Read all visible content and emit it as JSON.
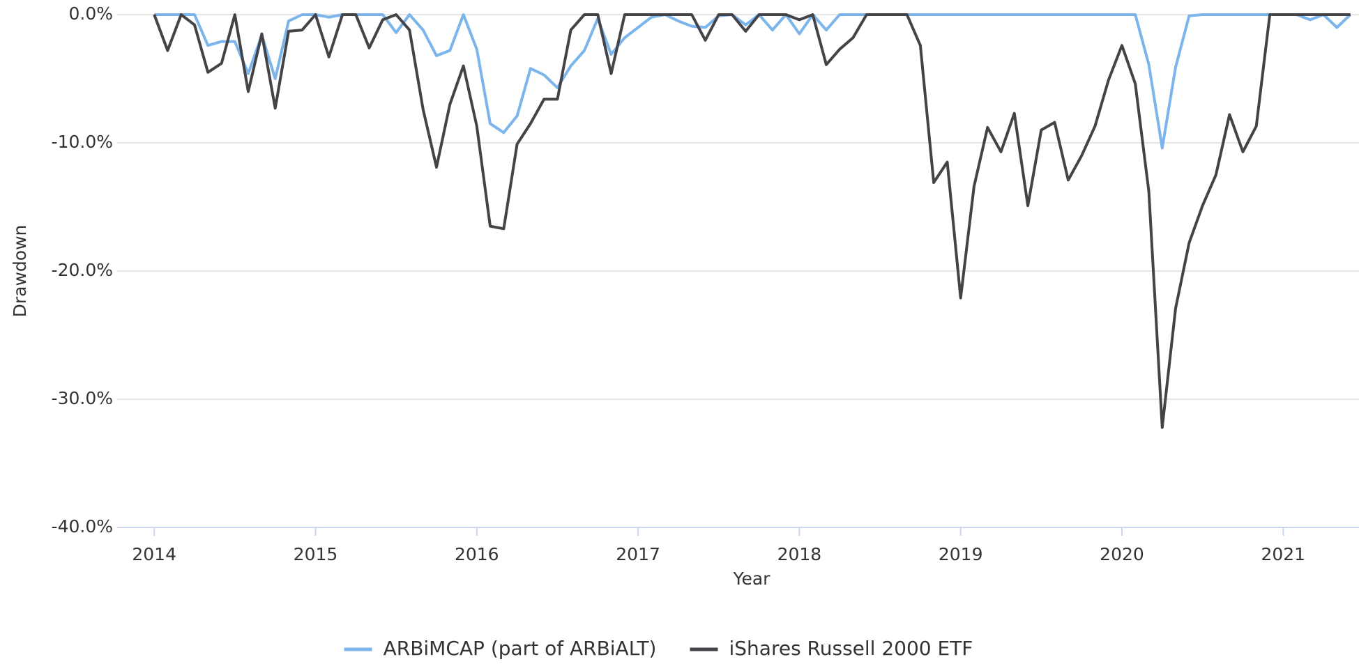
{
  "chart_data": {
    "type": "line",
    "x_label": "Year",
    "y_label": "Drawdown",
    "x": [
      2014,
      2014.083,
      2014.167,
      2014.25,
      2014.333,
      2014.417,
      2014.5,
      2014.583,
      2014.667,
      2014.75,
      2014.833,
      2014.917,
      2015,
      2015.083,
      2015.167,
      2015.25,
      2015.333,
      2015.417,
      2015.5,
      2015.583,
      2015.667,
      2015.75,
      2015.833,
      2015.917,
      2016,
      2016.083,
      2016.167,
      2016.25,
      2016.333,
      2016.417,
      2016.5,
      2016.583,
      2016.667,
      2016.75,
      2016.833,
      2016.917,
      2017,
      2017.083,
      2017.167,
      2017.25,
      2017.333,
      2017.417,
      2017.5,
      2017.583,
      2017.667,
      2017.75,
      2017.833,
      2017.917,
      2018,
      2018.083,
      2018.167,
      2018.25,
      2018.333,
      2018.417,
      2018.5,
      2018.583,
      2018.667,
      2018.75,
      2018.833,
      2018.917,
      2019,
      2019.083,
      2019.167,
      2019.25,
      2019.333,
      2019.417,
      2019.5,
      2019.583,
      2019.667,
      2019.75,
      2019.833,
      2019.917,
      2020,
      2020.083,
      2020.167,
      2020.25,
      2020.333,
      2020.417,
      2020.5,
      2020.583,
      2020.667,
      2020.75,
      2020.833,
      2020.917,
      2021,
      2021.083,
      2021.167,
      2021.25,
      2021.333,
      2021.417
    ],
    "series": [
      {
        "name": "ARBiMCAP (part of ARBiALT)",
        "color": "#7cb5ec",
        "values": [
          0,
          0,
          0,
          0,
          -2.4,
          -2.1,
          -2.1,
          -4.6,
          -1.6,
          -5.0,
          -0.5,
          0,
          0,
          -0.2,
          0,
          0,
          0,
          0,
          -1.4,
          0,
          -1.2,
          -3.2,
          -2.8,
          0,
          -2.7,
          -8.5,
          -9.2,
          -7.9,
          -4.2,
          -4.7,
          -5.7,
          -4.0,
          -2.8,
          -0.3,
          -3.1,
          -1.8,
          -1.0,
          -0.2,
          0,
          -0.5,
          -0.9,
          -1.0,
          -0.1,
          0,
          -0.8,
          0,
          -1.2,
          0,
          -1.5,
          0,
          -1.2,
          0,
          0,
          0,
          0,
          0,
          0,
          0,
          0,
          0,
          0,
          0,
          0,
          0,
          0,
          0,
          0,
          0,
          0,
          0,
          0,
          0,
          0,
          0,
          -3.9,
          -10.4,
          -4.1,
          -0.1,
          0,
          0,
          0,
          0,
          0,
          0,
          0,
          0,
          -0.4,
          0,
          -1.0,
          0
        ]
      },
      {
        "name": "iShares Russell 2000 ETF",
        "color": "#434348",
        "values": [
          0,
          -2.8,
          0,
          -0.8,
          -4.5,
          -3.8,
          0,
          -6.0,
          -1.5,
          -7.3,
          -1.3,
          -1.2,
          0,
          -3.3,
          0,
          0,
          -2.6,
          -0.4,
          0,
          -1.2,
          -7.4,
          -11.9,
          -7.0,
          -4.0,
          -8.7,
          -16.5,
          -16.7,
          -10.1,
          -8.5,
          -6.6,
          -6.6,
          -1.2,
          0,
          0,
          -4.6,
          0,
          0,
          0,
          0,
          0,
          0,
          -2.0,
          0,
          0,
          -1.3,
          0,
          0,
          0,
          -0.4,
          0,
          -3.9,
          -2.7,
          -1.8,
          0,
          0,
          0,
          0,
          -2.4,
          -13.1,
          -11.5,
          -22.1,
          -13.4,
          -8.8,
          -10.7,
          -7.7,
          -14.9,
          -9.0,
          -8.4,
          -12.9,
          -11.0,
          -8.7,
          -5.1,
          -2.4,
          -5.4,
          -13.8,
          -32.2,
          -22.9,
          -17.8,
          -14.9,
          -12.5,
          -7.8,
          -10.7,
          -8.7,
          0,
          0,
          0,
          0,
          0,
          0,
          0
        ]
      }
    ],
    "xlim": [
      2013.77,
      2021.47
    ],
    "xticks": [
      2014,
      2015,
      2016,
      2017,
      2018,
      2019,
      2020,
      2021
    ],
    "ylim": [
      -40,
      0
    ],
    "yticks": [
      {
        "value": -40,
        "label": "-40.0%"
      },
      {
        "value": -30,
        "label": "-30.0%"
      },
      {
        "value": -20,
        "label": "-20.0%"
      },
      {
        "value": -10,
        "label": "-10.0%"
      },
      {
        "value": 0,
        "label": "0.0%"
      }
    ],
    "grid": true,
    "legend": "bottom"
  }
}
